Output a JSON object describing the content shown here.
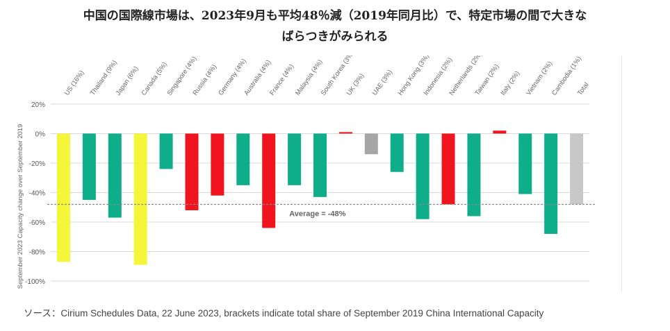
{
  "title_line1": "中国の国際線市場は、2023年9月も平均48％減（2019年同月比）で、特定市場の間で大きな",
  "title_line2": "ばらつきがみられる",
  "source": "ソース：Cirium Schedules Data, 22 June 2023, brackets indicate total share of September 2019 China International Capacity",
  "colors": {
    "yellow": "#f5f53a",
    "green": "#0eae8a",
    "red": "#f0141e",
    "gray": "#a6a6a6",
    "lightgray": "#c8c8c8"
  },
  "chart_data": {
    "type": "bar",
    "ylabel": "September 2023 Capacity change over September 2019",
    "ylim": [
      -100,
      20
    ],
    "yticks": [
      20,
      0,
      -20,
      -40,
      -60,
      -80,
      -100
    ],
    "ytick_labels": [
      "20%",
      "0%",
      "-20%",
      "-40%",
      "-60%",
      "-80%",
      "-100%"
    ],
    "grid": true,
    "categories": [
      "US (16%)",
      "Thailand (9%)",
      "Japan (6%)",
      "Canada (5%)",
      "Singapore (4%)",
      "Russia (4%)",
      "Germany (4%)",
      "Australia (4%)",
      "France (4%)",
      "Malaysia (4%)",
      "South Korea (3%)",
      "UK (3%)",
      "UAE (3%)",
      "Hong Kong (3%)",
      "Indonesia (2%)",
      "Netherlands (2%)",
      "Taiwan (2%)",
      "Italy (2%)",
      "Vietnam (2%)",
      "Cambodia (1%)",
      "Total"
    ],
    "values": [
      -87,
      -45,
      -57,
      -89,
      -24,
      -52,
      -42,
      -35,
      -64,
      -35,
      -43,
      1,
      -14,
      -26,
      -58,
      -48,
      -56,
      2,
      -41,
      -68,
      -48
    ],
    "bar_colors": [
      "yellow",
      "green",
      "green",
      "yellow",
      "green",
      "red",
      "red",
      "green",
      "red",
      "green",
      "green",
      "red",
      "gray",
      "green",
      "green",
      "red",
      "green",
      "red",
      "green",
      "green",
      "lightgray"
    ],
    "average": {
      "value": -48,
      "label": "Average = -48%"
    }
  }
}
